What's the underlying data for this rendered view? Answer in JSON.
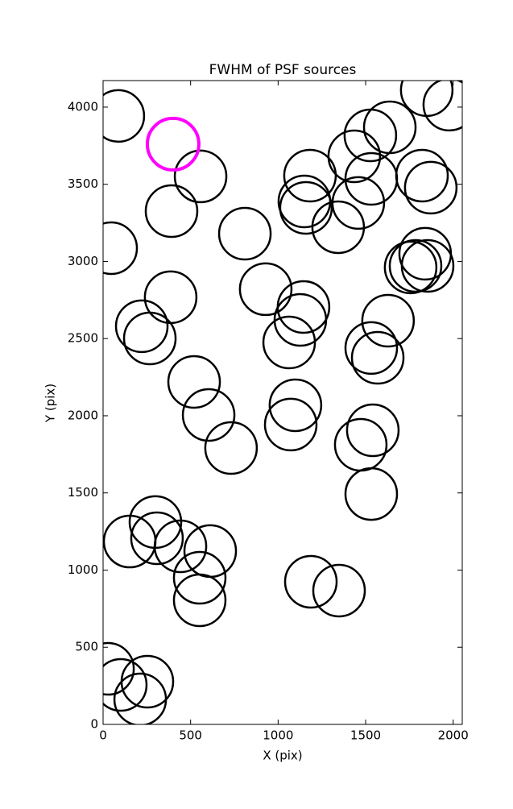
{
  "chart_data": {
    "type": "scatter",
    "title": "FWHM of PSF sources",
    "x_label": "X (pix)",
    "y_label": "Y (pix)",
    "xlim": [
      0,
      2052
    ],
    "ylim": [
      0,
      4172
    ],
    "xticks": [
      0,
      500,
      1000,
      1500,
      2000
    ],
    "yticks": [
      0,
      500,
      1000,
      1500,
      2000,
      2500,
      3000,
      3500,
      4000
    ],
    "grid": false,
    "series": [
      {
        "color": "#000000",
        "x": [
          87,
          557,
          391,
          46,
          810,
          929,
          386,
          221,
          267,
          520,
          603,
          731,
          1145,
          1127,
          1063,
          1099,
          1072,
          1182,
          1159,
          1150,
          1343,
          1458,
          1435,
          1527,
          1638,
          1532,
          1822,
          1872,
          1840,
          1854,
          1757,
          1785,
          1628,
          1532,
          1569,
          1541,
          1472,
          1532,
          299,
          308,
          152,
          442,
          612,
          552,
          552,
          1187,
          1348,
          28,
          101,
          253,
          212,
          1849,
          1978
        ],
        "values": [
          3943,
          3551,
          3326,
          3086,
          3180,
          2820,
          2768,
          2580,
          2501,
          2219,
          2005,
          1791,
          2705,
          2621,
          2475,
          2068,
          1943,
          3556,
          3347,
          3389,
          3222,
          3379,
          3681,
          3817,
          3869,
          3535,
          3556,
          3478,
          3050,
          2971,
          2961,
          2971,
          2616,
          2439,
          2376,
          1906,
          1812,
          1493,
          1311,
          1206,
          1185,
          1154,
          1123,
          950,
          804,
          924,
          867,
          360,
          256,
          277,
          162,
          4110,
          4016
        ]
      },
      {
        "color": "#ff00ff",
        "x": [
          400
        ],
        "values": [
          3760
        ]
      }
    ]
  }
}
